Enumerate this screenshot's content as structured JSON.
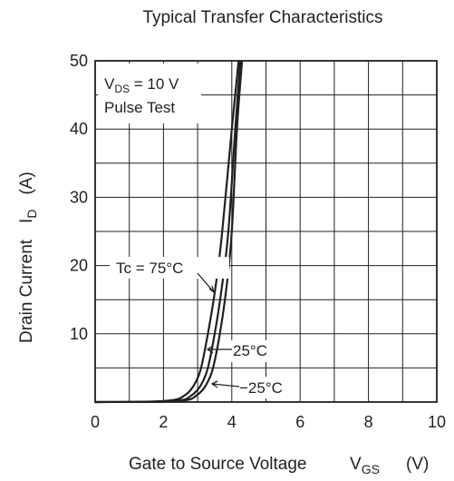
{
  "chart_data": {
    "type": "line",
    "title": "Typical Transfer Characteristics",
    "xlabel": {
      "main": "Gate to Source Voltage",
      "sym": "V",
      "sub": "GS",
      "unit": "(V)"
    },
    "ylabel": {
      "main": "Drain Current",
      "sym": "I",
      "sub": "D",
      "unit": "(A)"
    },
    "xlim": [
      0,
      10
    ],
    "ylim": [
      0,
      50
    ],
    "x_ticks": [
      0,
      2,
      4,
      6,
      8,
      10
    ],
    "y_ticks": [
      10,
      20,
      30,
      40,
      50
    ],
    "grid": true,
    "conditions": {
      "line1": {
        "sym": "V",
        "sub": "DS",
        "text": " = 10 V"
      },
      "line2": "Pulse Test"
    },
    "series": [
      {
        "name": "Tc = 75°C",
        "x": [
          0.0,
          1.5,
          2.3,
          2.6,
          2.8,
          2.95,
          3.1,
          3.3,
          3.5,
          3.7,
          4.0,
          4.2
        ],
        "y": [
          0.0,
          0.05,
          0.3,
          0.9,
          1.8,
          3.0,
          5.0,
          10.0,
          16.0,
          24.0,
          40.0,
          50.0
        ]
      },
      {
        "name": "25°C",
        "x": [
          0.0,
          1.8,
          2.55,
          2.8,
          3.0,
          3.15,
          3.3,
          3.5,
          3.7,
          3.9,
          4.1,
          4.25
        ],
        "y": [
          0.0,
          0.05,
          0.3,
          0.9,
          1.8,
          3.0,
          5.0,
          10.0,
          16.5,
          25.0,
          40.0,
          50.0
        ]
      },
      {
        "name": "−25°C",
        "x": [
          0.0,
          2.0,
          2.7,
          2.95,
          3.15,
          3.3,
          3.45,
          3.65,
          3.85,
          4.0,
          4.15,
          4.3
        ],
        "y": [
          0.0,
          0.05,
          0.3,
          0.9,
          1.8,
          3.0,
          5.0,
          10.0,
          17.0,
          25.0,
          40.0,
          50.0
        ]
      }
    ]
  }
}
